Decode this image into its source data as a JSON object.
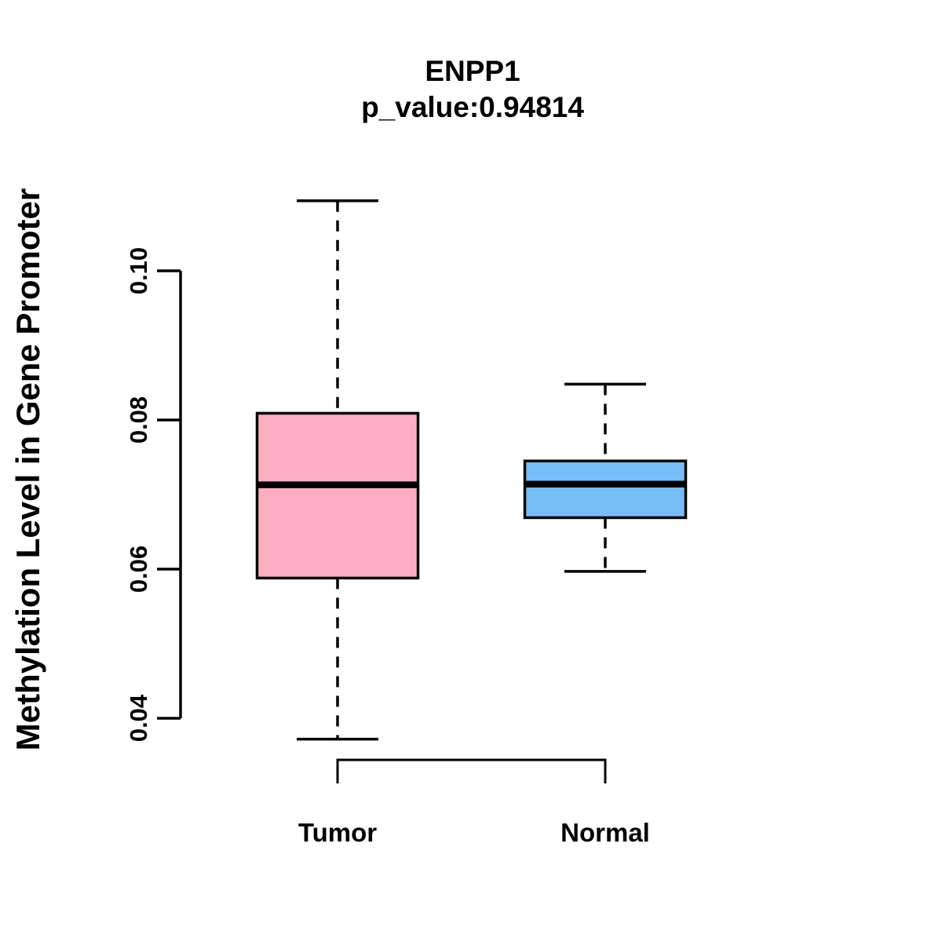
{
  "chart_data": {
    "type": "boxplot",
    "title": "ENPP1",
    "subtitle": "p_value:0.94814",
    "xlabel": "",
    "ylabel": "Methylation Level in Gene Promoter",
    "categories": [
      "Tumor",
      "Normal"
    ],
    "yticks": [
      "0.04",
      "0.06",
      "0.08",
      "0.10"
    ],
    "ylim": [
      0.035,
      0.112
    ],
    "grid": false,
    "legend": "none",
    "orientation": "vertical",
    "series": [
      {
        "name": "Tumor",
        "lower_whisker": 0.0372,
        "q1": 0.0588,
        "median": 0.0713,
        "q3": 0.0809,
        "upper_whisker": 0.1094,
        "fill_color": "#FCAEC1"
      },
      {
        "name": "Normal",
        "lower_whisker": 0.0597,
        "q1": 0.0669,
        "median": 0.0714,
        "q3": 0.0745,
        "upper_whisker": 0.0848,
        "fill_color": "#77BDF7"
      }
    ],
    "stroke_color": "#000000",
    "background_color": "#FFFFFF",
    "whisker_style": "dashed"
  }
}
